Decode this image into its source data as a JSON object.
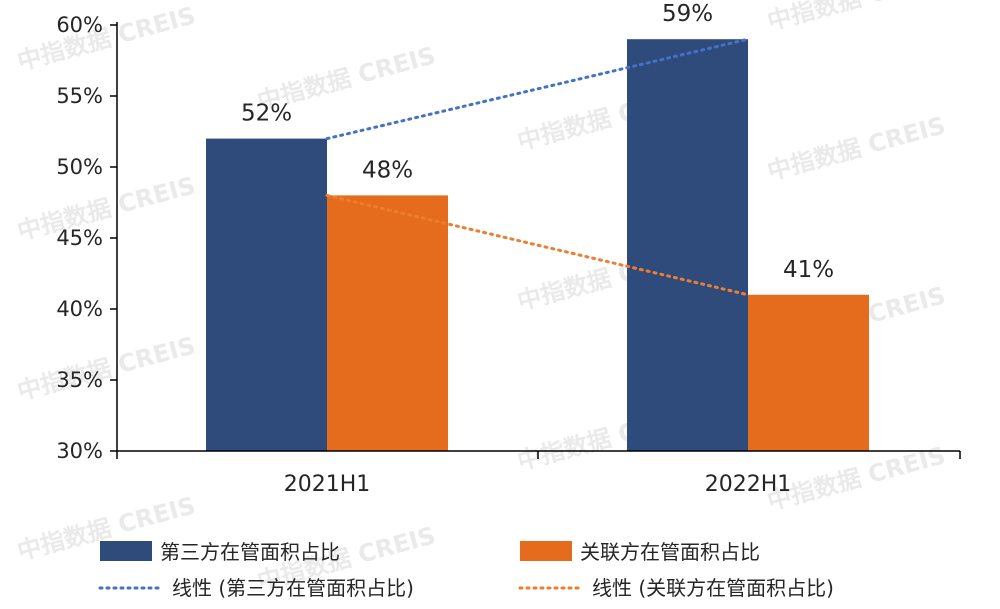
{
  "chart_data": {
    "type": "bar",
    "categories": [
      "2021H1",
      "2022H1"
    ],
    "ylim": [
      30,
      60
    ],
    "yticks": [
      "30%",
      "35%",
      "40%",
      "45%",
      "50%",
      "55%",
      "60%"
    ],
    "y_unit": "%",
    "series": [
      {
        "name": "第三方在管面积占比",
        "values": [
          52,
          59
        ],
        "labels": [
          "52%",
          "59%"
        ],
        "color": "#2f4b7c"
      },
      {
        "name": "关联方在管面积占比",
        "values": [
          48,
          41
        ],
        "labels": [
          "48%",
          "41%"
        ],
        "color": "#e46c1c"
      }
    ],
    "trendlines": [
      {
        "name": "线性 (第三方在管面积占比)",
        "series": 0,
        "color": "#4472c4",
        "style": "dotted"
      },
      {
        "name": "线性 (关联方在管面积占比)",
        "series": 1,
        "color": "#ed7d31",
        "style": "dotted"
      }
    ],
    "legend_position": "bottom",
    "grid": false
  },
  "watermark": {
    "text": "中指数据 CREIS"
  }
}
